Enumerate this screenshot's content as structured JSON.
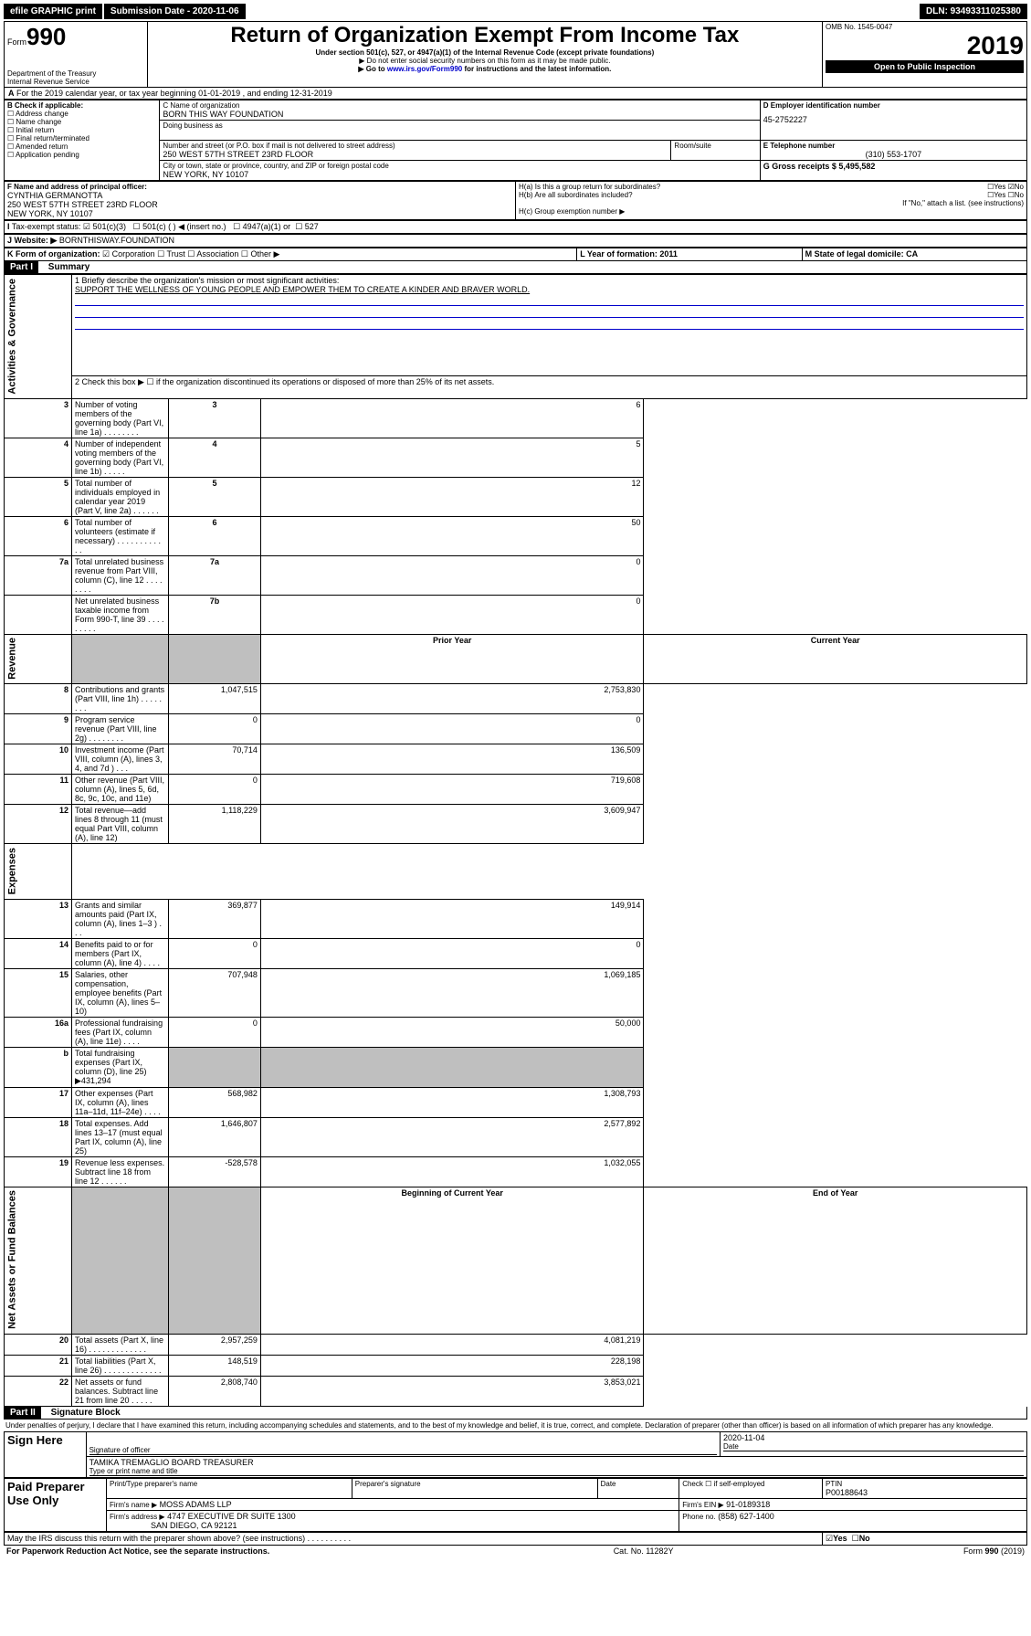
{
  "topbar": {
    "efile": "efile GRAPHIC print",
    "sub_label": "Submission Date - 2020-11-06",
    "dln": "DLN: 93493311025380"
  },
  "header": {
    "form_label": "Form",
    "form_no": "990",
    "dept": "Department of the Treasury\nInternal Revenue Service",
    "title": "Return of Organization Exempt From Income Tax",
    "sub1": "Under section 501(c), 527, or 4947(a)(1) of the Internal Revenue Code (except private foundations)",
    "sub2": "▶ Do not enter social security numbers on this form as it may be made public.",
    "sub3_pre": "▶ Go to ",
    "sub3_link": "www.irs.gov/Form990",
    "sub3_post": " for instructions and the latest information.",
    "omb": "OMB No. 1545-0047",
    "year": "2019",
    "open": "Open to Public Inspection"
  },
  "A": {
    "line": "For the 2019 calendar year, or tax year beginning 01-01-2019   , and ending 12-31-2019"
  },
  "B": {
    "hdr": "B Check if applicable:",
    "items": [
      "Address change",
      "Name change",
      "Initial return",
      "Final return/terminated",
      "Amended return",
      "Application pending"
    ]
  },
  "C": {
    "name_lbl": "C Name of organization",
    "name": "BORN THIS WAY FOUNDATION",
    "dba": "Doing business as",
    "addr_lbl": "Number and street (or P.O. box if mail is not delivered to street address)",
    "room": "Room/suite",
    "addr": "250 WEST 57TH STREET 23RD FLOOR",
    "city_lbl": "City or town, state or province, country, and ZIP or foreign postal code",
    "city": "NEW YORK, NY  10107"
  },
  "D": {
    "lbl": "D Employer identification number",
    "val": "45-2752227"
  },
  "E": {
    "lbl": "E Telephone number",
    "val": "(310) 553-1707"
  },
  "G": {
    "lbl": "G Gross receipts $ 5,495,582"
  },
  "F": {
    "lbl": "F  Name and address of principal officer:",
    "name": "CYNTHIA GERMANOTTA",
    "addr1": "250 WEST 57TH STREET 23RD FLOOR",
    "addr2": "NEW YORK, NY  10107"
  },
  "H": {
    "a": "H(a)  Is this a group return for subordinates?",
    "b": "H(b)  Are all subordinates included?",
    "bnote": "If \"No,\" attach a list. (see instructions)",
    "c": "H(c)  Group exemption number ▶",
    "yes": "Yes",
    "no": "No"
  },
  "I": {
    "lbl": "Tax-exempt status:",
    "opts": [
      "501(c)(3)",
      "501(c) (   ) ◀ (insert no.)",
      "4947(a)(1) or",
      "527"
    ]
  },
  "J": {
    "lbl": "Website: ▶",
    "val": "BORNTHISWAY.FOUNDATION"
  },
  "K": {
    "lbl": "K Form of organization:",
    "opts": [
      "Corporation",
      "Trust",
      "Association",
      "Other ▶"
    ]
  },
  "L": {
    "lbl": "L Year of formation: 2011"
  },
  "M": {
    "lbl": "M State of legal domicile: CA"
  },
  "part1": {
    "hdr": "Part I",
    "title": "Summary",
    "q1": "1  Briefly describe the organization's mission or most significant activities:",
    "mission": "SUPPORT THE WELLNESS OF YOUNG PEOPLE AND EMPOWER THEM TO CREATE A KINDER AND BRAVER WORLD.",
    "q2": "2   Check this box ▶ ☐  if the organization discontinued its operations or disposed of more than 25% of its net assets.",
    "sections": {
      "gov": "Activities & Governance",
      "rev": "Revenue",
      "exp": "Expenses",
      "net": "Net Assets or Fund Balances"
    },
    "rows_top": [
      {
        "n": "3",
        "t": "Number of voting members of the governing body (Part VI, line 1a)   .    .    .    .    .    .    .    .",
        "box": "3",
        "v": "6"
      },
      {
        "n": "4",
        "t": "Number of independent voting members of the governing body (Part VI, line 1b)   .    .    .    .    .",
        "box": "4",
        "v": "5"
      },
      {
        "n": "5",
        "t": "Total number of individuals employed in calendar year 2019 (Part V, line 2a)   .    .    .    .    .    .",
        "box": "5",
        "v": "12"
      },
      {
        "n": "6",
        "t": "Total number of volunteers (estimate if necessary)   .    .    .    .    .    .    .    .    .    .    .    .",
        "box": "6",
        "v": "50"
      },
      {
        "n": "7a",
        "t": "Total unrelated business revenue from Part VIII, column (C), line 12   .    .    .    .    .    .    .    .",
        "box": "7a",
        "v": "0"
      },
      {
        "n": "",
        "t": "Net unrelated business taxable income from Form 990-T, line 39   .    .    .    .    .    .    .    .    .",
        "box": "7b",
        "v": "0"
      }
    ],
    "col_prior": "Prior Year",
    "col_curr": "Current Year",
    "rows_rev": [
      {
        "n": "8",
        "t": "Contributions and grants (Part VIII, line 1h)   .    .    .    .    .    .    .    .",
        "p": "1,047,515",
        "c": "2,753,830"
      },
      {
        "n": "9",
        "t": "Program service revenue (Part VIII, line 2g)   .    .    .    .    .    .    .    .",
        "p": "0",
        "c": "0"
      },
      {
        "n": "10",
        "t": "Investment income (Part VIII, column (A), lines 3, 4, and 7d )   .    .    .",
        "p": "70,714",
        "c": "136,509"
      },
      {
        "n": "11",
        "t": "Other revenue (Part VIII, column (A), lines 5, 6d, 8c, 9c, 10c, and 11e)",
        "p": "0",
        "c": "719,608"
      },
      {
        "n": "12",
        "t": "Total revenue—add lines 8 through 11 (must equal Part VIII, column (A), line 12)",
        "p": "1,118,229",
        "c": "3,609,947"
      }
    ],
    "rows_exp": [
      {
        "n": "13",
        "t": "Grants and similar amounts paid (Part IX, column (A), lines 1–3 )   .    .    .",
        "p": "369,877",
        "c": "149,914"
      },
      {
        "n": "14",
        "t": "Benefits paid to or for members (Part IX, column (A), line 4)   .    .    .    .",
        "p": "0",
        "c": "0"
      },
      {
        "n": "15",
        "t": "Salaries, other compensation, employee benefits (Part IX, column (A), lines 5–10)",
        "p": "707,948",
        "c": "1,069,185"
      },
      {
        "n": "16a",
        "t": "Professional fundraising fees (Part IX, column (A), line 11e)   .    .    .    .",
        "p": "0",
        "c": "50,000"
      },
      {
        "n": "b",
        "t": "Total fundraising expenses (Part IX, column (D), line 25) ▶431,294",
        "p": "",
        "c": ""
      },
      {
        "n": "17",
        "t": "Other expenses (Part IX, column (A), lines 11a–11d, 11f–24e)   .    .    .    .",
        "p": "568,982",
        "c": "1,308,793"
      },
      {
        "n": "18",
        "t": "Total expenses. Add lines 13–17 (must equal Part IX, column (A), line 25)",
        "p": "1,646,807",
        "c": "2,577,892"
      },
      {
        "n": "19",
        "t": "Revenue less expenses. Subtract line 18 from line 12   .    .    .    .    .    .",
        "p": "-528,578",
        "c": "1,032,055"
      }
    ],
    "col_beg": "Beginning of Current Year",
    "col_end": "End of Year",
    "rows_net": [
      {
        "n": "20",
        "t": "Total assets (Part X, line 16)   .    .    .    .    .    .    .    .    .    .    .    .    .",
        "p": "2,957,259",
        "c": "4,081,219"
      },
      {
        "n": "21",
        "t": "Total liabilities (Part X, line 26)   .    .    .    .    .    .    .    .    .    .    .    .    .",
        "p": "148,519",
        "c": "228,198"
      },
      {
        "n": "22",
        "t": "Net assets or fund balances. Subtract line 21 from line 20   .    .    .    .    .",
        "p": "2,808,740",
        "c": "3,853,021"
      }
    ]
  },
  "part2": {
    "hdr": "Part II",
    "title": "Signature Block",
    "decl": "Under penalties of perjury, I declare that I have examined this return, including accompanying schedules and statements, and to the best of my knowledge and belief, it is true, correct, and complete. Declaration of preparer (other than officer) is based on all information of which preparer has any knowledge.",
    "sign": "Sign Here",
    "sig_officer": "Signature of officer",
    "date": "2020-11-04",
    "date_lbl": "Date",
    "name": "TAMIKA TREMAGLIO  BOARD TREASURER",
    "name_lbl": "Type or print name and title",
    "paid": "Paid Preparer Use Only",
    "prep_name_lbl": "Print/Type preparer's name",
    "prep_sig_lbl": "Preparer's signature",
    "prep_date_lbl": "Date",
    "check_lbl": "Check ☐ if self-employed",
    "ptin_lbl": "PTIN",
    "ptin": "P00188643",
    "firm_name_lbl": "Firm's name    ▶",
    "firm_name": "MOSS ADAMS LLP",
    "firm_ein_lbl": "Firm's EIN ▶",
    "firm_ein": "91-0189318",
    "firm_addr_lbl": "Firm's address ▶",
    "firm_addr1": "4747 EXECUTIVE DR SUITE 1300",
    "firm_addr2": "SAN DIEGO, CA  92121",
    "phone_lbl": "Phone no.",
    "phone": "(858) 627-1400",
    "discuss": "May the IRS discuss this return with the preparer shown above? (see instructions)   .    .    .    .    .    .    .    .    .    .",
    "yes": "Yes",
    "no": "No"
  },
  "footer": {
    "pra": "For Paperwork Reduction Act Notice, see the separate instructions.",
    "cat": "Cat. No. 11282Y",
    "form": "Form 990 (2019)"
  }
}
